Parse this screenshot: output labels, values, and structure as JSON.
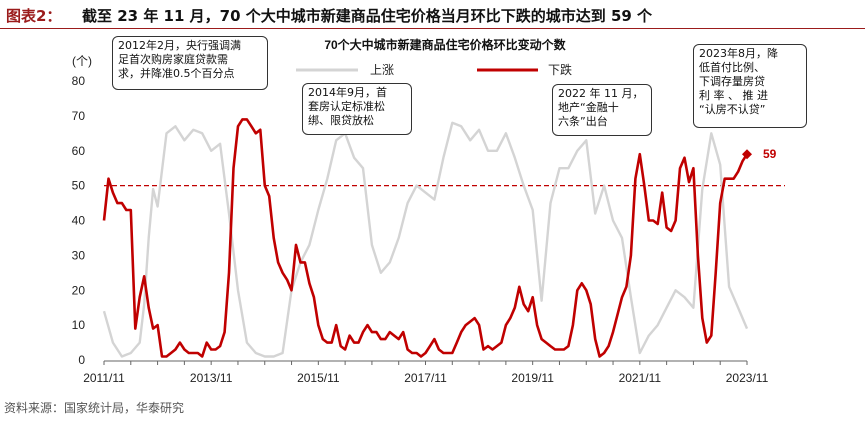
{
  "header": {
    "label": "图表2：",
    "title": "截至 23 年 11 月，70 个大中城市新建商品住宅价格当月环比下跌的城市达到 59 个"
  },
  "chart_data": {
    "type": "line",
    "title": "70个大中城市新建商品住宅价格环比变动个数",
    "ylabel": "(个)",
    "ylim": [
      0,
      80
    ],
    "yticks": [
      0,
      10,
      20,
      30,
      40,
      50,
      60,
      70,
      80
    ],
    "xlim": [
      "2011-11",
      "2023-11"
    ],
    "xticks": [
      "2011/11",
      "2013/11",
      "2015/11",
      "2017/11",
      "2019/11",
      "2021/11",
      "2023/11"
    ],
    "legend_position": "top-right",
    "reference_line": {
      "y": 50,
      "style": "dashed",
      "color": "#c00000"
    },
    "last_point_label": "59",
    "series": [
      {
        "name": "上涨",
        "color": "#d4d4d4",
        "x": [
          "2011-11",
          "2012-01",
          "2012-03",
          "2012-05",
          "2012-07",
          "2012-08",
          "2012-09",
          "2012-10",
          "2012-11",
          "2013-01",
          "2013-03",
          "2013-05",
          "2013-07",
          "2013-09",
          "2013-11",
          "2014-01",
          "2014-03",
          "2014-05",
          "2014-07",
          "2014-09",
          "2014-11",
          "2015-01",
          "2015-03",
          "2015-05",
          "2015-07",
          "2015-09",
          "2015-11",
          "2016-01",
          "2016-03",
          "2016-05",
          "2016-07",
          "2016-09",
          "2016-11",
          "2017-01",
          "2017-03",
          "2017-05",
          "2017-07",
          "2017-09",
          "2017-11",
          "2018-01",
          "2018-03",
          "2018-05",
          "2018-07",
          "2018-09",
          "2018-11",
          "2019-01",
          "2019-03",
          "2019-05",
          "2019-07",
          "2019-09",
          "2019-11",
          "2020-01",
          "2020-03",
          "2020-05",
          "2020-07",
          "2020-09",
          "2020-11",
          "2021-01",
          "2021-03",
          "2021-05",
          "2021-07",
          "2021-09",
          "2021-11",
          "2022-01",
          "2022-03",
          "2022-05",
          "2022-07",
          "2022-09",
          "2022-11",
          "2023-01",
          "2023-03",
          "2023-05",
          "2023-07",
          "2023-09",
          "2023-11"
        ],
        "values": [
          14,
          5,
          1,
          2,
          5,
          16,
          35,
          49,
          44,
          65,
          67,
          63,
          66,
          65,
          60,
          62,
          42,
          20,
          5,
          2,
          1,
          1,
          2,
          20,
          28,
          33,
          43,
          52,
          63,
          65,
          58,
          55,
          33,
          25,
          28,
          35,
          45,
          50,
          48,
          46,
          58,
          68,
          67,
          63,
          66,
          60,
          60,
          65,
          58,
          50,
          43,
          17,
          45,
          55,
          55,
          60,
          63,
          42,
          50,
          40,
          35,
          18,
          2,
          7,
          10,
          15,
          20,
          18,
          15,
          49,
          65,
          56,
          21,
          15,
          9
        ]
      },
      {
        "name": "下跌",
        "color": "#c00000",
        "x": [
          "2011-11",
          "2011-12",
          "2012-01",
          "2012-02",
          "2012-03",
          "2012-04",
          "2012-05",
          "2012-06",
          "2012-07",
          "2012-08",
          "2012-09",
          "2012-10",
          "2012-11",
          "2012-12",
          "2013-01",
          "2013-02",
          "2013-03",
          "2013-04",
          "2013-05",
          "2013-06",
          "2013-07",
          "2013-08",
          "2013-09",
          "2013-10",
          "2013-11",
          "2013-12",
          "2014-01",
          "2014-02",
          "2014-03",
          "2014-04",
          "2014-05",
          "2014-06",
          "2014-07",
          "2014-08",
          "2014-09",
          "2014-10",
          "2014-11",
          "2014-12",
          "2015-01",
          "2015-02",
          "2015-03",
          "2015-04",
          "2015-05",
          "2015-06",
          "2015-07",
          "2015-08",
          "2015-09",
          "2015-10",
          "2015-11",
          "2015-12",
          "2016-01",
          "2016-02",
          "2016-03",
          "2016-04",
          "2016-05",
          "2016-06",
          "2016-07",
          "2016-08",
          "2016-09",
          "2016-10",
          "2016-11",
          "2016-12",
          "2017-01",
          "2017-02",
          "2017-03",
          "2017-04",
          "2017-05",
          "2017-06",
          "2017-07",
          "2017-08",
          "2017-09",
          "2017-10",
          "2017-11",
          "2017-12",
          "2018-01",
          "2018-02",
          "2018-03",
          "2018-04",
          "2018-05",
          "2018-06",
          "2018-07",
          "2018-08",
          "2018-09",
          "2018-10",
          "2018-11",
          "2018-12",
          "2019-01",
          "2019-02",
          "2019-03",
          "2019-04",
          "2019-05",
          "2019-06",
          "2019-07",
          "2019-08",
          "2019-09",
          "2019-10",
          "2019-11",
          "2019-12",
          "2020-01",
          "2020-02",
          "2020-03",
          "2020-04",
          "2020-05",
          "2020-06",
          "2020-07",
          "2020-08",
          "2020-09",
          "2020-10",
          "2020-11",
          "2020-12",
          "2021-01",
          "2021-02",
          "2021-03",
          "2021-04",
          "2021-05",
          "2021-06",
          "2021-07",
          "2021-08",
          "2021-09",
          "2021-10",
          "2021-11",
          "2021-12",
          "2022-01",
          "2022-02",
          "2022-03",
          "2022-04",
          "2022-05",
          "2022-06",
          "2022-07",
          "2022-08",
          "2022-09",
          "2022-10",
          "2022-11",
          "2022-12",
          "2023-01",
          "2023-02",
          "2023-03",
          "2023-04",
          "2023-05",
          "2023-06",
          "2023-07",
          "2023-08",
          "2023-09",
          "2023-10",
          "2023-11"
        ],
        "values": [
          40,
          52,
          48,
          45,
          45,
          43,
          43,
          9,
          18,
          24,
          15,
          9,
          10,
          1,
          1,
          2,
          3,
          5,
          3,
          2,
          2,
          2,
          1,
          5,
          3,
          3,
          4,
          8,
          25,
          55,
          67,
          69,
          69,
          67,
          65,
          66,
          50,
          47,
          35,
          28,
          25,
          23,
          20,
          33,
          28,
          28,
          22,
          18,
          10,
          6,
          5,
          5,
          10,
          4,
          3,
          7,
          5,
          5,
          8,
          10,
          8,
          8,
          6,
          6,
          8,
          7,
          6,
          8,
          3,
          2,
          2,
          1,
          2,
          4,
          6,
          3,
          2,
          2,
          2,
          5,
          8,
          10,
          11,
          12,
          10,
          3,
          4,
          3,
          4,
          5,
          10,
          12,
          15,
          21,
          16,
          14,
          18,
          10,
          6,
          5,
          4,
          3,
          3,
          3,
          4,
          10,
          20,
          22,
          20,
          16,
          6,
          1,
          2,
          4,
          8,
          13,
          18,
          21,
          30,
          52,
          59,
          50,
          40,
          40,
          39,
          48,
          38,
          37,
          40,
          55,
          58,
          51,
          55,
          30,
          12,
          5,
          7,
          25,
          45,
          52,
          52,
          52,
          54,
          57,
          59
        ]
      }
    ]
  },
  "annotations": {
    "note1": [
      "2012年2月，央行强调满",
      "足首次购房家庭贷款需",
      "求，并降准0.5个百分点"
    ],
    "note2": [
      "2014年9月，首",
      "套房认定标准松",
      "绑、限贷放松"
    ],
    "note3": [
      "2022 年 11 月，",
      "地产“金融十",
      "六条”出台"
    ],
    "note4": [
      "2023年8月，降",
      "低首付比例、",
      "下调存量房贷",
      "利 率 、 推 进",
      "“认房不认贷”"
    ]
  },
  "footer": {
    "source": "资料来源：国家统计局，华泰研究"
  }
}
